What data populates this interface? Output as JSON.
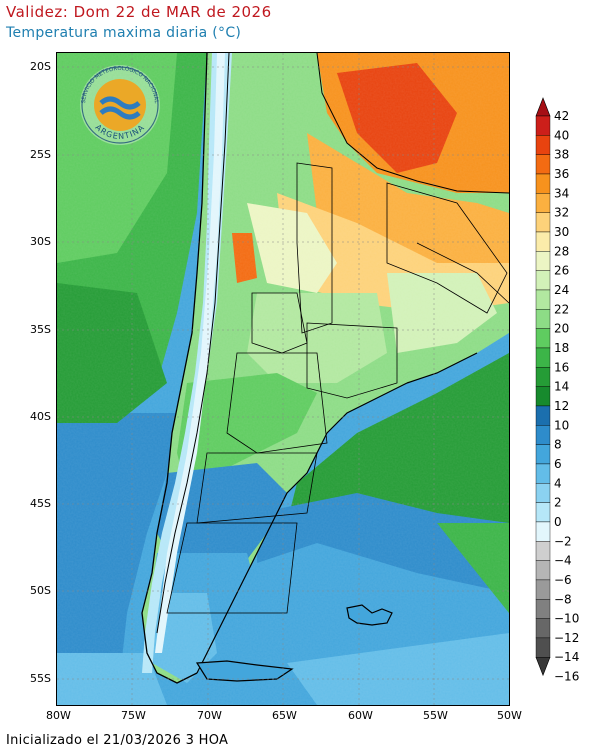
{
  "header": {
    "validity": "Validez: Dom 22 de MAR de 2026",
    "variable": "Temperatura maxima diaria (°C)"
  },
  "footer": {
    "init": "Inicializado el 21/03/2026 3 HOA"
  },
  "logo": {
    "top_text": "SERVICIO METEOROLÓGICO NACIONAL",
    "bottom_text": "ARGENTINA",
    "icon": "smn-logo"
  },
  "axes": {
    "lat_labels": [
      "20S",
      "25S",
      "30S",
      "35S",
      "40S",
      "45S",
      "50S",
      "55S"
    ],
    "lon_labels": [
      "80W",
      "75W",
      "70W",
      "65W",
      "60W",
      "55W",
      "50W"
    ]
  },
  "colorbar": {
    "labels": [
      "42",
      "40",
      "38",
      "36",
      "34",
      "32",
      "30",
      "28",
      "26",
      "24",
      "22",
      "20",
      "18",
      "16",
      "14",
      "12",
      "10",
      "8",
      "6",
      "4",
      "2",
      "0",
      "−2",
      "−4",
      "−6",
      "−8",
      "−10",
      "−12",
      "−14",
      "−16"
    ],
    "colors": [
      "#a50f15",
      "#cc1f1a",
      "#e8430f",
      "#f36b12",
      "#f7921d",
      "#fbb040",
      "#fdd27a",
      "#fbecaa",
      "#ecf5c4",
      "#d2f1b8",
      "#b2e8a0",
      "#8ddc86",
      "#5fcc60",
      "#3cb548",
      "#259c36",
      "#178a2d",
      "#1b6fae",
      "#2e8ccb",
      "#43a6dc",
      "#63bde8",
      "#8bd2f1",
      "#b6e7f8",
      "#e2f6fc",
      "#cfcfcf",
      "#b5b5b5",
      "#9a9a9a",
      "#808080",
      "#676767",
      "#4f4f4f",
      "#383838"
    ]
  }
}
